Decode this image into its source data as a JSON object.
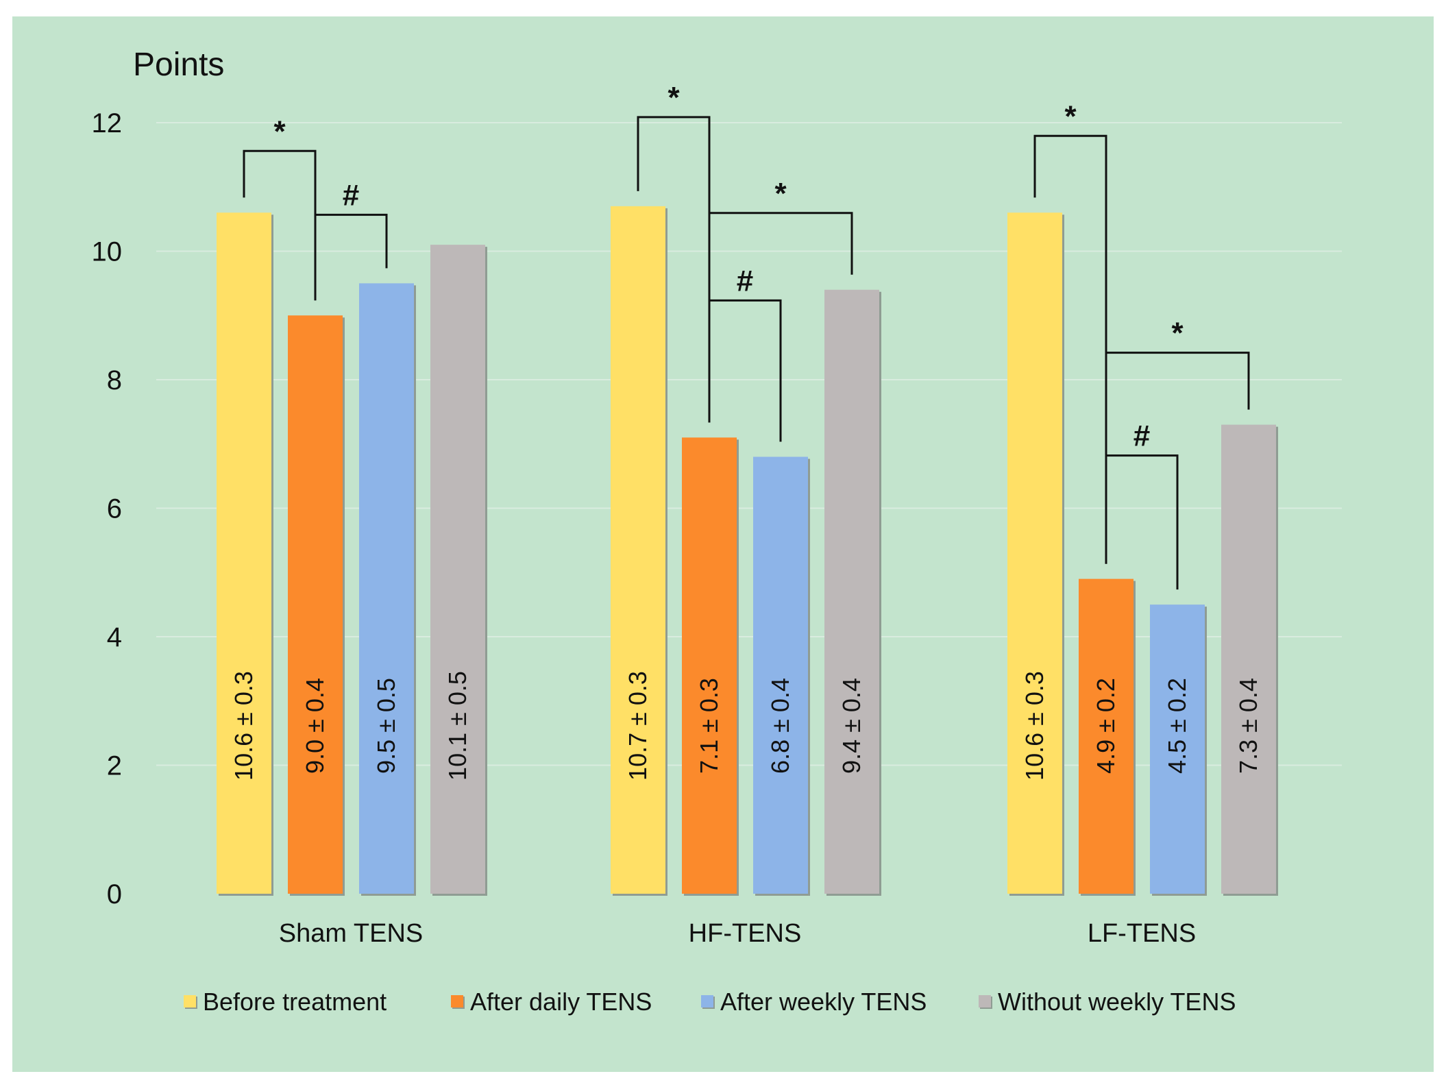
{
  "chart_data": {
    "type": "bar",
    "title": "",
    "xlabel": "",
    "ylabel": "Points",
    "ylim": [
      0,
      12
    ],
    "yticks": [
      0,
      2,
      4,
      6,
      8,
      10,
      12
    ],
    "grid": true,
    "categories": [
      "Sham TENS",
      "HF-TENS",
      "LF-TENS"
    ],
    "series": [
      {
        "name": "Before treatment",
        "color": "#ffe066",
        "values": [
          10.6,
          10.7,
          10.6
        ],
        "labels": [
          "10.6 ± 0.3",
          "10.7 ± 0.3",
          "10.6 ± 0.3"
        ]
      },
      {
        "name": "After daily TENS",
        "color": "#fb8a2c",
        "values": [
          9.0,
          7.1,
          4.9
        ],
        "labels": [
          "9.0 ± 0.4",
          "7.1 ± 0.3",
          "4.9 ± 0.2"
        ]
      },
      {
        "name": "After weekly TENS",
        "color": "#8db4e8",
        "values": [
          9.5,
          6.8,
          4.5
        ],
        "labels": [
          "9.5 ± 0.5",
          "6.8 ± 0.4",
          "4.5 ± 0.2"
        ]
      },
      {
        "name": "Without weekly TENS",
        "color": "#bdb8b8",
        "values": [
          10.1,
          9.4,
          7.3
        ],
        "labels": [
          "10.1 ± 0.5",
          "9.4 ± 0.4",
          "7.3 ± 0.4"
        ]
      }
    ],
    "significance": [
      {
        "group": 0,
        "from": 0,
        "to": 1,
        "symbol": "*"
      },
      {
        "group": 0,
        "from": 1,
        "to": 2,
        "symbol": "#"
      },
      {
        "group": 1,
        "from": 0,
        "to": 1,
        "symbol": "*"
      },
      {
        "group": 1,
        "from": 1,
        "to": 3,
        "symbol": "*"
      },
      {
        "group": 1,
        "from": 1,
        "to": 2,
        "symbol": "#"
      },
      {
        "group": 2,
        "from": 0,
        "to": 1,
        "symbol": "*"
      },
      {
        "group": 2,
        "from": 1,
        "to": 3,
        "symbol": "*"
      },
      {
        "group": 2,
        "from": 1,
        "to": 2,
        "symbol": "#"
      }
    ],
    "legend_position": "bottom"
  }
}
